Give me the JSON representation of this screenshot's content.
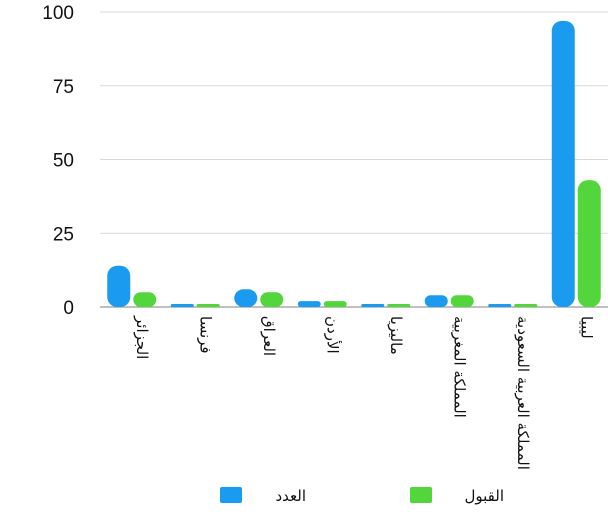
{
  "colors": {
    "count": "#1a9bf0",
    "accept": "#52d63c",
    "grid": "#d9d9d9",
    "axis": "#9a9a9a"
  },
  "chart_data": {
    "type": "bar",
    "categories": [
      "الجزائر",
      "فرنسا",
      "العراق",
      "الأردن",
      "ماليزيا",
      "المملكة المغربية",
      "المملكة العربية السعودية",
      "ليبيا"
    ],
    "series": [
      {
        "name": "العدد",
        "color": "#1a9bf0",
        "values": [
          14,
          1,
          6,
          2,
          1,
          4,
          1,
          97
        ]
      },
      {
        "name": "القبول",
        "color": "#52d63c",
        "values": [
          5,
          1,
          5,
          2,
          1,
          4,
          0.5,
          43
        ]
      }
    ],
    "yticks": [
      0,
      25,
      50,
      75,
      100
    ],
    "ylim": [
      0,
      100
    ],
    "grid": true,
    "legend_position": "bottom"
  }
}
